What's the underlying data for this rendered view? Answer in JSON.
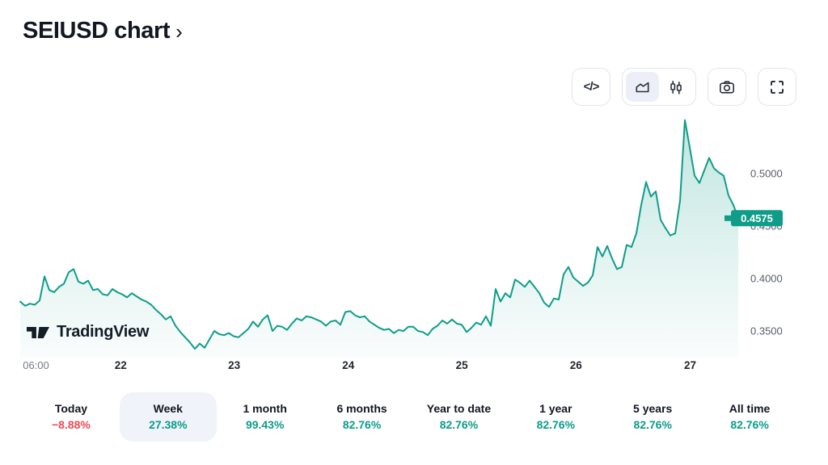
{
  "header": {
    "title": "SEIUSD chart",
    "chevron": "›"
  },
  "toolbar": {
    "code_label": "</>",
    "buttons": [
      {
        "name": "embed-code"
      },
      {
        "name": "chart-style",
        "segments": [
          {
            "style": "area",
            "selected": true
          },
          {
            "style": "candles",
            "selected": false
          }
        ]
      },
      {
        "name": "snapshot"
      },
      {
        "name": "fullscreen"
      }
    ]
  },
  "watermark": {
    "text": "TradingView"
  },
  "chart_data": {
    "type": "area",
    "symbol": "SEIUSD",
    "line_color": "#0f9d89",
    "fill_top": "rgba(15,157,137,0.26)",
    "fill_bottom": "rgba(15,157,137,0.02)",
    "grid": false,
    "legend_position": "none",
    "y_axis_side": "right",
    "ylim": [
      0.328,
      0.56
    ],
    "y_ticks": [
      {
        "label": "0.5000",
        "value": 0.5
      },
      {
        "label": "0.4500",
        "value": 0.45
      },
      {
        "label": "0.4000",
        "value": 0.4
      },
      {
        "label": "0.3500",
        "value": 0.35
      }
    ],
    "last_price": {
      "label": "0.4575",
      "value": 0.4575
    },
    "x_labels": [
      {
        "label": "06:00",
        "pos": 0.022,
        "bold": false
      },
      {
        "label": "22",
        "pos": 0.14,
        "bold": true
      },
      {
        "label": "23",
        "pos": 0.298,
        "bold": true
      },
      {
        "label": "24",
        "pos": 0.457,
        "bold": true
      },
      {
        "label": "25",
        "pos": 0.615,
        "bold": true
      },
      {
        "label": "26",
        "pos": 0.774,
        "bold": true
      },
      {
        "label": "27",
        "pos": 0.933,
        "bold": true
      }
    ],
    "values": [
      0.378,
      0.374,
      0.376,
      0.375,
      0.379,
      0.402,
      0.389,
      0.387,
      0.392,
      0.395,
      0.406,
      0.409,
      0.397,
      0.395,
      0.398,
      0.389,
      0.39,
      0.385,
      0.384,
      0.39,
      0.387,
      0.385,
      0.382,
      0.386,
      0.383,
      0.38,
      0.378,
      0.375,
      0.37,
      0.366,
      0.361,
      0.364,
      0.355,
      0.349,
      0.344,
      0.339,
      0.333,
      0.338,
      0.334,
      0.342,
      0.35,
      0.347,
      0.346,
      0.348,
      0.345,
      0.344,
      0.348,
      0.352,
      0.359,
      0.354,
      0.361,
      0.365,
      0.35,
      0.355,
      0.354,
      0.351,
      0.357,
      0.362,
      0.36,
      0.364,
      0.363,
      0.361,
      0.359,
      0.355,
      0.359,
      0.36,
      0.356,
      0.368,
      0.369,
      0.365,
      0.363,
      0.364,
      0.359,
      0.356,
      0.353,
      0.351,
      0.352,
      0.348,
      0.351,
      0.35,
      0.354,
      0.354,
      0.35,
      0.349,
      0.346,
      0.352,
      0.355,
      0.36,
      0.357,
      0.361,
      0.357,
      0.356,
      0.349,
      0.353,
      0.358,
      0.356,
      0.364,
      0.355,
      0.39,
      0.378,
      0.386,
      0.382,
      0.399,
      0.396,
      0.392,
      0.398,
      0.392,
      0.386,
      0.377,
      0.373,
      0.381,
      0.38,
      0.404,
      0.411,
      0.401,
      0.397,
      0.393,
      0.396,
      0.403,
      0.43,
      0.421,
      0.431,
      0.419,
      0.409,
      0.411,
      0.432,
      0.43,
      0.443,
      0.47,
      0.492,
      0.478,
      0.483,
      0.456,
      0.448,
      0.441,
      0.443,
      0.474,
      0.551,
      0.525,
      0.498,
      0.491,
      0.503,
      0.515,
      0.505,
      0.501,
      0.498,
      0.479,
      0.47,
      0.4575
    ]
  },
  "periods": {
    "up_color": "#0c9c88",
    "down_color": "#ef4956",
    "items": [
      {
        "label": "Today",
        "change": "−8.88%",
        "direction": "down",
        "selected": false
      },
      {
        "label": "Week",
        "change": "27.38%",
        "direction": "up",
        "selected": true
      },
      {
        "label": "1 month",
        "change": "99.43%",
        "direction": "up",
        "selected": false
      },
      {
        "label": "6 months",
        "change": "82.76%",
        "direction": "up",
        "selected": false
      },
      {
        "label": "Year to date",
        "change": "82.76%",
        "direction": "up",
        "selected": false
      },
      {
        "label": "1 year",
        "change": "82.76%",
        "direction": "up",
        "selected": false
      },
      {
        "label": "5 years",
        "change": "82.76%",
        "direction": "up",
        "selected": false
      },
      {
        "label": "All time",
        "change": "82.76%",
        "direction": "up",
        "selected": false
      }
    ]
  }
}
